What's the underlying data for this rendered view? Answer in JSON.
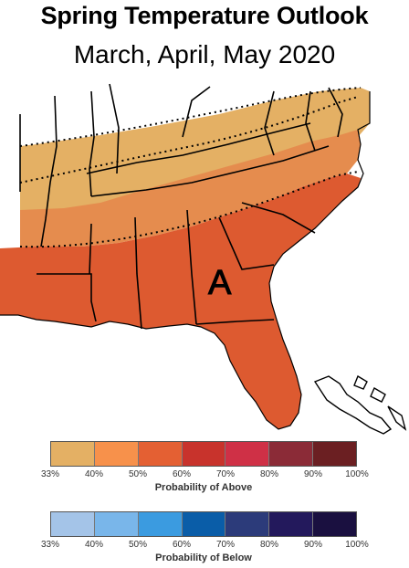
{
  "title": "Spring Temperature Outlook",
  "subtitle": "March, April, May 2020",
  "map": {
    "region_label": "A",
    "colors": {
      "above_33_40": "#e4b064",
      "above_40_50": "#e58c4e",
      "above_50_60": "#dd5a30",
      "water": "#ffffff",
      "border": "#000000"
    }
  },
  "legend_above": {
    "caption": "Probability of Above",
    "ticks": [
      "33%",
      "40%",
      "50%",
      "60%",
      "70%",
      "80%",
      "90%",
      "100%"
    ],
    "colors": [
      "#e4b064",
      "#f7914b",
      "#e46033",
      "#c8332c",
      "#cf3046",
      "#8b2b37",
      "#6b1f22"
    ]
  },
  "legend_below": {
    "caption": "Probability of Below",
    "ticks": [
      "33%",
      "40%",
      "50%",
      "60%",
      "70%",
      "80%",
      "90%",
      "100%"
    ],
    "colors": [
      "#a4c4e8",
      "#79b6ea",
      "#3b9be0",
      "#0a5da8",
      "#2c3b7a",
      "#23195c",
      "#1a1040"
    ]
  }
}
